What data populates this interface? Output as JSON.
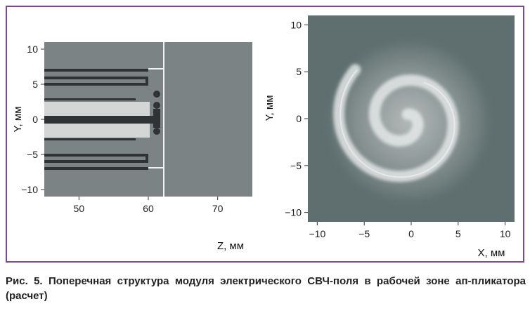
{
  "caption": "Рис. 5. Поперечная структура модуля электрического СВЧ-поля в рабочей зоне ап-пликатора (расчет)",
  "colors": {
    "frame": "#7d4a92",
    "left_plot_background": "#7b8385",
    "right_plot_fill": "#5f6f6f",
    "conductor_dark": "#2f3335",
    "dielectric_light": "#d4d6d6",
    "boundary_line": "#f0f0f0"
  },
  "chart_data": [
    {
      "type": "diagram",
      "xlabel": "Z, мм",
      "ylabel": "Y, мм",
      "xlim": [
        45,
        75
      ],
      "ylim": [
        -11,
        11
      ],
      "xticks": [
        "50",
        "60",
        "70"
      ],
      "yticks": [
        "10",
        "5",
        "0",
        "−5",
        "−10"
      ],
      "grid": false
    },
    {
      "type": "heatmap",
      "xlabel": "X, мм",
      "ylabel": "Y, мм",
      "xlim": [
        -11,
        11
      ],
      "ylim": [
        -11,
        11
      ],
      "xticks": [
        "−10",
        "−5",
        "0",
        "5",
        "10"
      ],
      "yticks": [
        "10",
        "5",
        "0",
        "−5",
        "−10"
      ],
      "grid": false
    }
  ]
}
